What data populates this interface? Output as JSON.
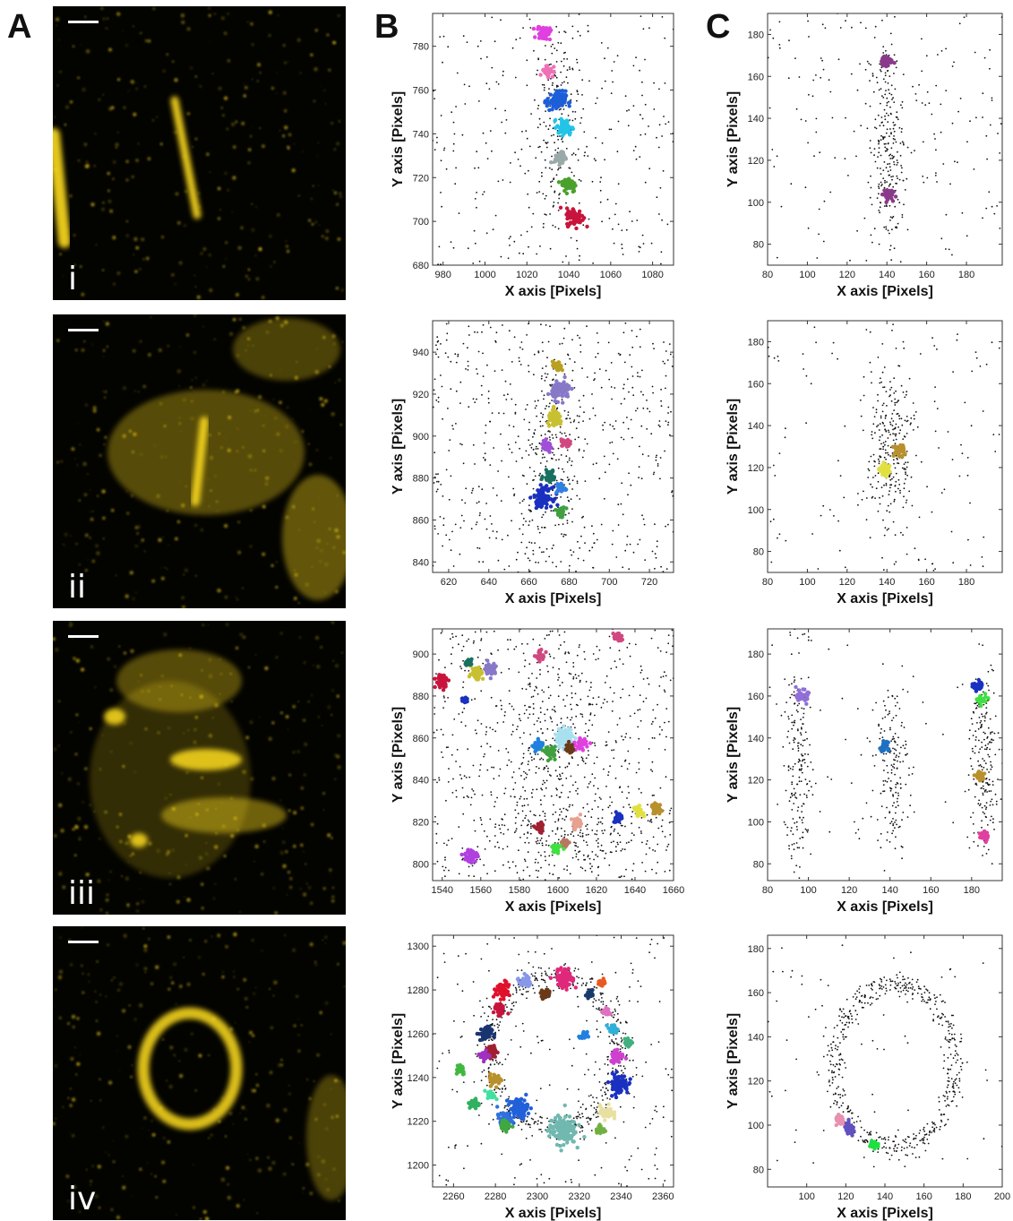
{
  "panel_letters": {
    "a": "A",
    "b": "B",
    "c": "C"
  },
  "colors": {
    "micrograph_bg": "#030300",
    "signal": "#f2d21c",
    "scale_bar": "#ffffff",
    "points": "#111111"
  },
  "rows": [
    {
      "roman": "i",
      "b_type": "bar-vertical",
      "c_type": "bar-vertical"
    },
    {
      "roman": "ii",
      "b_type": "bar-vertical",
      "c_type": "bar-vertical"
    },
    {
      "roman": "iii",
      "b_type": "scattered",
      "c_type": "three-bars"
    },
    {
      "roman": "iv",
      "b_type": "ring",
      "c_type": "ring"
    }
  ],
  "chart_data": [
    {
      "type": "scatter",
      "panel": "B",
      "row": "i",
      "xlabel": "X axis [Pixels]",
      "ylabel": "Y axis [Pixels]",
      "xlim": [
        975,
        1090
      ],
      "ylim": [
        680,
        795
      ],
      "xticks": [
        980,
        1000,
        1020,
        1040,
        1060,
        1080
      ],
      "yticks": [
        680,
        700,
        720,
        740,
        760,
        780
      ],
      "grid": false,
      "background": {
        "count": 260,
        "xrange": [
          975,
          1090
        ],
        "yrange": [
          680,
          795
        ]
      },
      "dense": [
        {
          "cx": 1035,
          "cy": 740,
          "sx": 6,
          "sy": 30,
          "count": 220
        }
      ],
      "clusters": [
        {
          "cx": 1028,
          "cy": 786,
          "r": 3.5,
          "color": "#e040e0"
        },
        {
          "cx": 1030,
          "cy": 769,
          "r": 3,
          "color": "#f070b8"
        },
        {
          "cx": 1034,
          "cy": 755,
          "r": 5,
          "color": "#1c5fd8"
        },
        {
          "cx": 1038,
          "cy": 743,
          "r": 4,
          "color": "#22c4e8"
        },
        {
          "cx": 1036,
          "cy": 729,
          "r": 3,
          "color": "#9aaaa8"
        },
        {
          "cx": 1040,
          "cy": 717,
          "r": 4,
          "color": "#4aa02c"
        },
        {
          "cx": 1043,
          "cy": 702,
          "r": 4.5,
          "color": "#c8143c"
        }
      ]
    },
    {
      "type": "scatter",
      "panel": "C",
      "row": "i",
      "xlabel": "X axis [Pixels]",
      "ylabel": "Y axis [Pixels]",
      "xlim": [
        80,
        198
      ],
      "ylim": [
        70,
        190
      ],
      "xticks": [
        80,
        100,
        120,
        140,
        160,
        180
      ],
      "yticks": [
        80,
        100,
        120,
        140,
        160,
        180
      ],
      "grid": false,
      "background": {
        "count": 180,
        "xrange": [
          80,
          198
        ],
        "yrange": [
          70,
          190
        ]
      },
      "dense": [
        {
          "cx": 140,
          "cy": 127,
          "sx": 4,
          "sy": 26,
          "count": 230
        }
      ],
      "clusters": [
        {
          "cx": 140,
          "cy": 167,
          "r": 3,
          "color": "#8a3a8a"
        },
        {
          "cx": 140,
          "cy": 104,
          "r": 3,
          "color": "#8a3a8a"
        }
      ]
    },
    {
      "type": "scatter",
      "panel": "B",
      "row": "ii",
      "xlabel": "X axis [Pixels]",
      "ylabel": "Y axis [Pixels]",
      "xlim": [
        612,
        732
      ],
      "ylim": [
        835,
        955
      ],
      "xticks": [
        620,
        640,
        660,
        680,
        700,
        720
      ],
      "yticks": [
        840,
        860,
        880,
        900,
        920,
        940
      ],
      "grid": false,
      "background": {
        "count": 520,
        "xrange": [
          612,
          732
        ],
        "yrange": [
          835,
          955
        ]
      },
      "dense": [
        {
          "cx": 670,
          "cy": 895,
          "sx": 7,
          "sy": 28,
          "count": 220
        }
      ],
      "clusters": [
        {
          "cx": 674,
          "cy": 933,
          "r": 2.5,
          "color": "#b8a020"
        },
        {
          "cx": 676,
          "cy": 922,
          "r": 5,
          "color": "#8878c8"
        },
        {
          "cx": 673,
          "cy": 908,
          "r": 4,
          "color": "#c8c030"
        },
        {
          "cx": 669,
          "cy": 895,
          "r": 3,
          "color": "#a050d8"
        },
        {
          "cx": 678,
          "cy": 897,
          "r": 2.5,
          "color": "#d04880"
        },
        {
          "cx": 670,
          "cy": 881,
          "r": 3,
          "color": "#187060"
        },
        {
          "cx": 667,
          "cy": 871,
          "r": 5,
          "color": "#1a30c0"
        },
        {
          "cx": 676,
          "cy": 875,
          "r": 2.5,
          "color": "#3080e0"
        },
        {
          "cx": 676,
          "cy": 864,
          "r": 2.5,
          "color": "#40a040"
        }
      ]
    },
    {
      "type": "scatter",
      "panel": "C",
      "row": "ii",
      "xlabel": "X axis [Pixels]",
      "ylabel": "Y axis [Pixels]",
      "xlim": [
        80,
        198
      ],
      "ylim": [
        70,
        190
      ],
      "xticks": [
        80,
        100,
        120,
        140,
        160,
        180
      ],
      "yticks": [
        80,
        100,
        120,
        140,
        160,
        180
      ],
      "grid": false,
      "background": {
        "count": 130,
        "xrange": [
          80,
          198
        ],
        "yrange": [
          70,
          190
        ]
      },
      "dense": [
        {
          "cx": 142,
          "cy": 128,
          "sx": 6,
          "sy": 22,
          "count": 260
        }
      ],
      "clusters": [
        {
          "cx": 146,
          "cy": 128,
          "r": 3,
          "color": "#b8902c"
        },
        {
          "cx": 139,
          "cy": 119,
          "r": 3,
          "color": "#e0e040"
        }
      ]
    },
    {
      "type": "scatter",
      "panel": "B",
      "row": "iii",
      "xlabel": "X axis [Pixels]",
      "ylabel": "Y axis [Pixels]",
      "xlim": [
        1535,
        1660
      ],
      "ylim": [
        792,
        912
      ],
      "xticks": [
        1540,
        1560,
        1580,
        1600,
        1620,
        1640,
        1660
      ],
      "yticks": [
        800,
        820,
        840,
        860,
        880,
        900
      ],
      "grid": false,
      "background": {
        "count": 620,
        "xrange": [
          1535,
          1660
        ],
        "yrange": [
          792,
          912
        ]
      },
      "dense": [
        {
          "cx": 1600,
          "cy": 855,
          "sx": 14,
          "sy": 30,
          "count": 240
        },
        {
          "cx": 1610,
          "cy": 810,
          "sx": 30,
          "sy": 8,
          "count": 170
        }
      ],
      "clusters": [
        {
          "cx": 1540,
          "cy": 887,
          "r": 3.5,
          "color": "#c8143c"
        },
        {
          "cx": 1552,
          "cy": 878,
          "r": 2,
          "color": "#1a30c0"
        },
        {
          "cx": 1558,
          "cy": 891,
          "r": 3.5,
          "color": "#c8c030"
        },
        {
          "cx": 1565,
          "cy": 893,
          "r": 3,
          "color": "#8878c8"
        },
        {
          "cx": 1554,
          "cy": 896,
          "r": 2,
          "color": "#187060"
        },
        {
          "cx": 1591,
          "cy": 899,
          "r": 2.5,
          "color": "#d04880"
        },
        {
          "cx": 1631,
          "cy": 908,
          "r": 2.5,
          "color": "#d04880"
        },
        {
          "cx": 1590,
          "cy": 856,
          "r": 3,
          "color": "#2080e0"
        },
        {
          "cx": 1596,
          "cy": 853,
          "r": 3,
          "color": "#40a040"
        },
        {
          "cx": 1603,
          "cy": 860,
          "r": 5,
          "color": "#a8e0f0"
        },
        {
          "cx": 1612,
          "cy": 857,
          "r": 3,
          "color": "#e040e0"
        },
        {
          "cx": 1606,
          "cy": 855,
          "r": 2.5,
          "color": "#6a3a18"
        },
        {
          "cx": 1591,
          "cy": 817,
          "r": 2.5,
          "color": "#a02030"
        },
        {
          "cx": 1610,
          "cy": 819,
          "r": 3,
          "color": "#e8a090"
        },
        {
          "cx": 1604,
          "cy": 810,
          "r": 2,
          "color": "#b87860"
        },
        {
          "cx": 1599,
          "cy": 807,
          "r": 2.5,
          "color": "#40e040"
        },
        {
          "cx": 1631,
          "cy": 822,
          "r": 2.5,
          "color": "#1a30c0"
        },
        {
          "cx": 1642,
          "cy": 825,
          "r": 2.5,
          "color": "#e0e040"
        },
        {
          "cx": 1651,
          "cy": 826,
          "r": 3,
          "color": "#b8902c"
        },
        {
          "cx": 1555,
          "cy": 804,
          "r": 3.5,
          "color": "#b040e0"
        }
      ]
    },
    {
      "type": "scatter",
      "panel": "C",
      "row": "iii",
      "xlabel": "X axis [Pixels]",
      "ylabel": "Y axis [Pixels]",
      "xlim": [
        80,
        195
      ],
      "ylim": [
        72,
        192
      ],
      "xticks": [
        80,
        100,
        120,
        140,
        160,
        180
      ],
      "yticks": [
        80,
        100,
        120,
        140,
        160,
        180
      ],
      "grid": false,
      "background": {
        "count": 60,
        "xrange": [
          80,
          195
        ],
        "yrange": [
          72,
          192
        ]
      },
      "dense": [
        {
          "cx": 95,
          "cy": 125,
          "sx": 3.5,
          "sy": 26,
          "count": 190
        },
        {
          "cx": 141,
          "cy": 128,
          "sx": 4,
          "sy": 20,
          "count": 170
        },
        {
          "cx": 186,
          "cy": 128,
          "sx": 3.5,
          "sy": 25,
          "count": 190
        }
      ],
      "clusters": [
        {
          "cx": 97,
          "cy": 160,
          "r": 3,
          "color": "#9070d8"
        },
        {
          "cx": 137,
          "cy": 136,
          "r": 2.5,
          "color": "#2070c0"
        },
        {
          "cx": 183,
          "cy": 165,
          "r": 2.5,
          "color": "#1a30c0"
        },
        {
          "cx": 185,
          "cy": 158,
          "r": 2.5,
          "color": "#40e040"
        },
        {
          "cx": 184,
          "cy": 122,
          "r": 2.5,
          "color": "#b8902c"
        },
        {
          "cx": 186,
          "cy": 93,
          "r": 2.5,
          "color": "#e040a0"
        }
      ]
    },
    {
      "type": "scatter",
      "panel": "B",
      "row": "iv",
      "xlabel": "X axis [Pixels]",
      "ylabel": "Y axis [Pixels]",
      "xlim": [
        2250,
        2365
      ],
      "ylim": [
        1190,
        1305
      ],
      "xticks": [
        2260,
        2280,
        2300,
        2320,
        2340,
        2360
      ],
      "yticks": [
        1200,
        1220,
        1240,
        1260,
        1280,
        1300
      ],
      "grid": false,
      "background": {
        "count": 200,
        "xrange": [
          2250,
          2365
        ],
        "yrange": [
          1190,
          1305
        ]
      },
      "ring": {
        "cx": 2308,
        "cy": 1252,
        "rx": 31,
        "ry": 35,
        "width": 6,
        "count": 560
      },
      "clusters": [
        {
          "cx": 2294,
          "cy": 1284,
          "r": 3,
          "color": "#8898e8"
        },
        {
          "cx": 2313,
          "cy": 1285,
          "r": 5,
          "color": "#e0287a"
        },
        {
          "cx": 2283,
          "cy": 1280,
          "r": 4,
          "color": "#e0102a"
        },
        {
          "cx": 2304,
          "cy": 1278,
          "r": 2.5,
          "color": "#6a3a18"
        },
        {
          "cx": 2282,
          "cy": 1271,
          "r": 3,
          "color": "#c8143c"
        },
        {
          "cx": 2325,
          "cy": 1278,
          "r": 2,
          "color": "#183a6a"
        },
        {
          "cx": 2331,
          "cy": 1283,
          "r": 2,
          "color": "#e85a20"
        },
        {
          "cx": 2333,
          "cy": 1270,
          "r": 2,
          "color": "#e070c0"
        },
        {
          "cx": 2275,
          "cy": 1260,
          "r": 3.5,
          "color": "#1a3470"
        },
        {
          "cx": 2322,
          "cy": 1259,
          "r": 2,
          "color": "#2080e0"
        },
        {
          "cx": 2336,
          "cy": 1262,
          "r": 2.5,
          "color": "#30b0d8"
        },
        {
          "cx": 2344,
          "cy": 1256,
          "r": 2,
          "color": "#40b080"
        },
        {
          "cx": 2278,
          "cy": 1252,
          "r": 3,
          "color": "#a02030"
        },
        {
          "cx": 2275,
          "cy": 1250,
          "r": 2.5,
          "color": "#a030c0"
        },
        {
          "cx": 2263,
          "cy": 1244,
          "r": 3,
          "color": "#40b840"
        },
        {
          "cx": 2280,
          "cy": 1239,
          "r": 3,
          "color": "#b8902c"
        },
        {
          "cx": 2278,
          "cy": 1232,
          "r": 2,
          "color": "#40e0a0"
        },
        {
          "cx": 2338,
          "cy": 1250,
          "r": 3.5,
          "color": "#d040d0"
        },
        {
          "cx": 2339,
          "cy": 1237,
          "r": 5,
          "color": "#1a30c0"
        },
        {
          "cx": 2291,
          "cy": 1226,
          "r": 5,
          "color": "#2060d8"
        },
        {
          "cx": 2270,
          "cy": 1228,
          "r": 2.5,
          "color": "#30b060"
        },
        {
          "cx": 2284,
          "cy": 1221,
          "r": 3.5,
          "color": "#3070e0"
        },
        {
          "cx": 2285,
          "cy": 1218,
          "r": 2.5,
          "color": "#40a840"
        },
        {
          "cx": 2312,
          "cy": 1216,
          "r": 7,
          "color": "#70b8b0"
        },
        {
          "cx": 2333,
          "cy": 1224,
          "r": 3.5,
          "color": "#e8e0a0"
        },
        {
          "cx": 2330,
          "cy": 1216,
          "r": 2.5,
          "color": "#70b040"
        }
      ]
    },
    {
      "type": "scatter",
      "panel": "C",
      "row": "iv",
      "xlabel": "X axis [Pixels]",
      "ylabel": "Y axis [Pixels]",
      "xlim": [
        80,
        200
      ],
      "ylim": [
        72,
        186
      ],
      "xticks": [
        100,
        120,
        140,
        160,
        180,
        200
      ],
      "yticks": [
        80,
        100,
        120,
        140,
        160,
        180
      ],
      "grid": false,
      "background": {
        "count": 70,
        "xrange": [
          80,
          200
        ],
        "yrange": [
          72,
          186
        ]
      },
      "ring": {
        "cx": 145,
        "cy": 127,
        "rx": 31,
        "ry": 37,
        "width": 5,
        "count": 520
      },
      "clusters": [
        {
          "cx": 117,
          "cy": 102,
          "r": 2.5,
          "color": "#e890b0"
        },
        {
          "cx": 122,
          "cy": 98,
          "r": 3,
          "color": "#6050c0"
        },
        {
          "cx": 134,
          "cy": 91,
          "r": 2.5,
          "color": "#20e040"
        }
      ]
    }
  ]
}
